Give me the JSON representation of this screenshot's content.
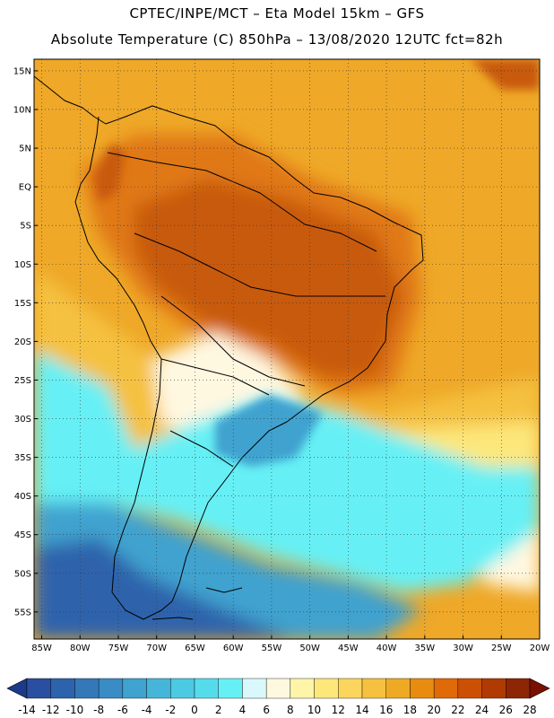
{
  "title": {
    "line1": "CPTEC/INPE/MCT –   Eta Model 15km – GFS",
    "line2": "Absolute Temperature (C) 850hPa – 13/08/2020 12UTC fct=82h"
  },
  "map": {
    "lat_labels": [
      "15N",
      "10N",
      "5N",
      "EQ",
      "5S",
      "10S",
      "15S",
      "20S",
      "25S",
      "30S",
      "35S",
      "40S",
      "45S",
      "50S",
      "55S"
    ],
    "lat_values": [
      15,
      10,
      5,
      0,
      -5,
      -10,
      -15,
      -20,
      -25,
      -30,
      -35,
      -40,
      -45,
      -50,
      -55
    ],
    "lon_labels": [
      "85W",
      "80W",
      "75W",
      "70W",
      "65W",
      "60W",
      "55W",
      "50W",
      "45W",
      "40W",
      "35W",
      "30W",
      "25W",
      "20W"
    ],
    "lon_values": [
      -85,
      -80,
      -75,
      -70,
      -65,
      -60,
      -55,
      -50,
      -45,
      -40,
      -35,
      -30,
      -25,
      -20
    ],
    "lat_range": [
      -58.5,
      16.5
    ],
    "lon_range": [
      -86,
      -20
    ]
  },
  "colorbar": {
    "labels": [
      "-14",
      "-12",
      "-10",
      "-8",
      "-6",
      "-4",
      "-2",
      "0",
      "2",
      "4",
      "6",
      "8",
      "10",
      "12",
      "14",
      "16",
      "18",
      "20",
      "22",
      "24",
      "26",
      "28"
    ],
    "colors": [
      "#2a4fa0",
      "#2d63ac",
      "#3478b8",
      "#3a8cc4",
      "#3fa2cf",
      "#45b6d9",
      "#4ccae3",
      "#55dcec",
      "#66f0f5",
      "#d8f8fc",
      "#fff8e1",
      "#fff5a8",
      "#fde77a",
      "#fbd55c",
      "#f5c13f",
      "#eeaa25",
      "#e88c10",
      "#e06a08",
      "#cc5004",
      "#b03a02",
      "#8c2604"
    ],
    "low_color": "#1c3a8a",
    "high_color": "#7a1000"
  },
  "fields": {
    "ocean_warm": "#efa828",
    "ocean_mid": "#f5c13f",
    "ocean_cool": "#fde77a",
    "land_hot": "#c85a10",
    "land_warm": "#e07818",
    "pale": "#fff8e1",
    "cold_light": "#66f0f5",
    "cold_mid": "#3fa2cf",
    "cold_deep": "#2d63ac"
  }
}
